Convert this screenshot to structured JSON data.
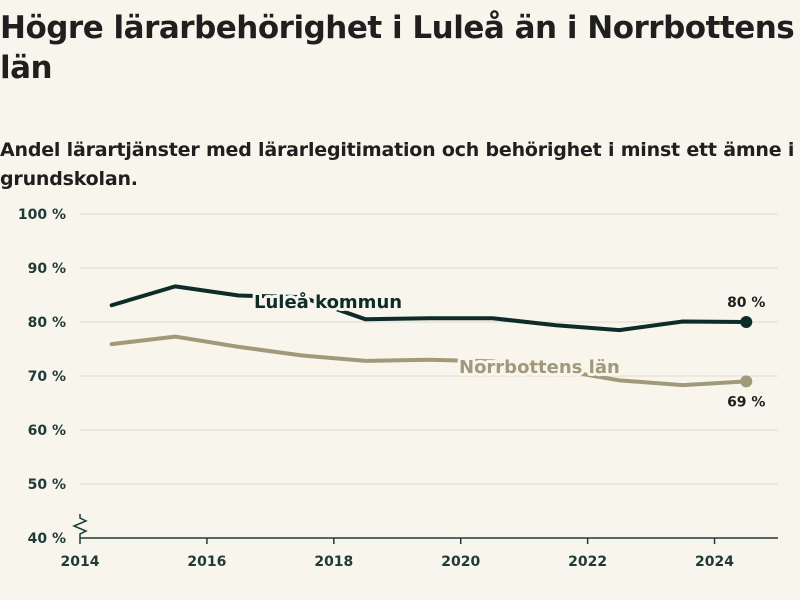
{
  "title": "Högre lärarbehörighet i Luleå än i Norrbottens län",
  "subtitle": "Andel lärartjänster med lärarlegitimation och behörighet i minst ett ämne i grundskolan.",
  "colors": {
    "lulea": "#0d2b29",
    "norrbotten": "#a09a7a",
    "grid": "#dedbd2",
    "axis": "#1f3a37"
  },
  "chart_data": {
    "type": "line",
    "title": "Högre lärarbehörighet i Luleå än i Norrbottens län",
    "subtitle": "Andel lärartjänster med lärarlegitimation och behörighet i minst ett ämne i grundskolan.",
    "xlabel": "",
    "ylabel": "",
    "x_ticks": [
      2014,
      2016,
      2018,
      2020,
      2022,
      2024
    ],
    "xlim": [
      2014,
      2025
    ],
    "y_ticks": [
      40,
      50,
      60,
      70,
      80,
      90,
      100
    ],
    "y_tick_labels": [
      "40 %",
      "50 %",
      "60 %",
      "70 %",
      "80 %",
      "90 %",
      "100 %"
    ],
    "ylim": [
      40,
      100
    ],
    "y_axis_break": true,
    "grid": true,
    "x": [
      2014.5,
      2015.5,
      2016.5,
      2017.5,
      2018.5,
      2019.5,
      2020.5,
      2021.5,
      2022.5,
      2023.5,
      2024.5
    ],
    "series": [
      {
        "name": "Luleå kommun",
        "values": [
          83.1,
          86.6,
          84.9,
          84.6,
          80.5,
          80.7,
          80.7,
          79.4,
          78.5,
          80.1,
          80
        ],
        "end_label": "80 %"
      },
      {
        "name": "Norrbottens län",
        "values": [
          75.9,
          77.3,
          75.4,
          73.8,
          72.8,
          73.0,
          72.7,
          71.2,
          69.2,
          68.3,
          69
        ],
        "end_label": "69 %"
      }
    ]
  }
}
